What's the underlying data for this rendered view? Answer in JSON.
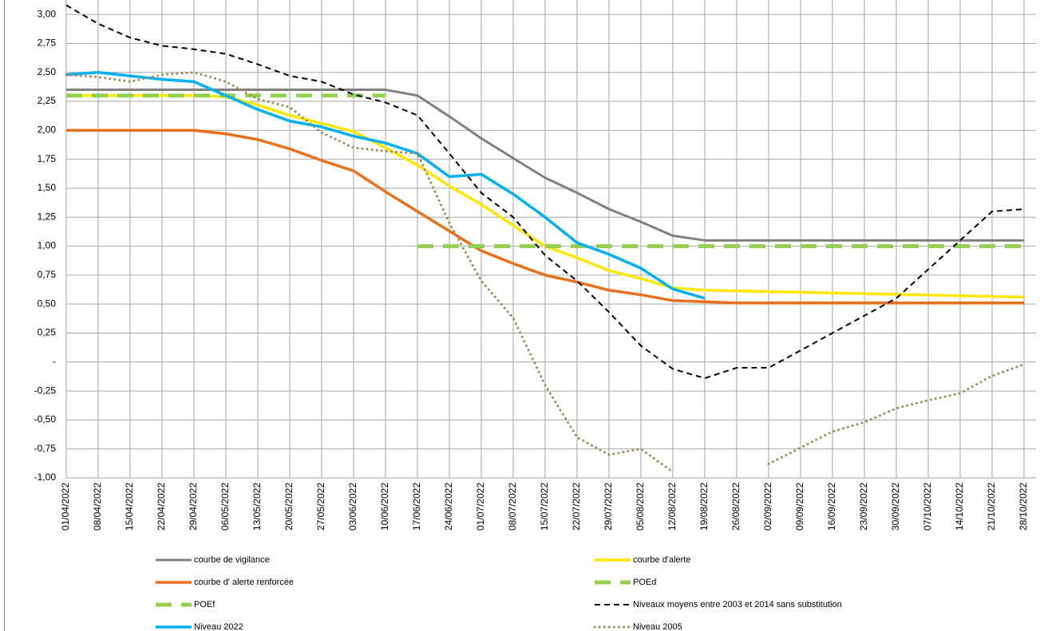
{
  "chart_data": {
    "type": "line",
    "categories": [
      "01/04/2022",
      "08/04/2022",
      "15/04/2022",
      "22/04/2022",
      "29/04/2022",
      "06/05/2022",
      "13/05/2022",
      "20/05/2022",
      "27/05/2022",
      "03/06/2022",
      "10/06/2022",
      "17/06/2022",
      "24/06/2022",
      "01/07/2022",
      "08/07/2022",
      "15/07/2022",
      "22/07/2022",
      "29/07/2022",
      "05/08/2022",
      "12/08/2022",
      "19/08/2022",
      "26/08/2022",
      "02/09/2022",
      "09/09/2022",
      "16/09/2022",
      "23/09/2022",
      "30/09/2022",
      "07/10/2022",
      "14/10/2022",
      "21/10/2022",
      "28/10/2022"
    ],
    "ylim": [
      -1,
      3.125
    ],
    "yticks": [
      {
        "value": 3,
        "label": "3,00"
      },
      {
        "value": 2.75,
        "label": "2,75"
      },
      {
        "value": 2.5,
        "label": "2,50"
      },
      {
        "value": 2.25,
        "label": "2,25"
      },
      {
        "value": 2,
        "label": "2,00"
      },
      {
        "value": 1.75,
        "label": "1,75"
      },
      {
        "value": 1.5,
        "label": "1,50"
      },
      {
        "value": 1.25,
        "label": "1,25"
      },
      {
        "value": 1,
        "label": "1,00"
      },
      {
        "value": 0.75,
        "label": "0,75"
      },
      {
        "value": 0.5,
        "label": "0,50"
      },
      {
        "value": 0.25,
        "label": "0,25"
      },
      {
        "value": 0,
        "label": "-"
      },
      {
        "value": -0.25,
        "label": "-0,25"
      },
      {
        "value": -0.5,
        "label": "-0,50"
      },
      {
        "value": -0.75,
        "label": "-0,75"
      },
      {
        "value": -1,
        "label": "-1,00"
      }
    ],
    "grid": true,
    "legend": "bottom",
    "series": [
      {
        "name": "courbe de vigilance",
        "color": "#808080",
        "line_style": "solid",
        "values": [
          2.35,
          2.35,
          2.35,
          2.35,
          2.35,
          2.35,
          2.35,
          2.35,
          2.35,
          2.35,
          2.35,
          2.3,
          2.12,
          1.93,
          1.76,
          1.59,
          1.46,
          1.32,
          1.21,
          1.09,
          1.05,
          1.05,
          1.05,
          1.05,
          1.05,
          1.05,
          1.05,
          1.05,
          1.05,
          1.05,
          1.05
        ]
      },
      {
        "name": "courbe d'alerte",
        "color": "#ffe600",
        "line_style": "solid",
        "values": [
          2.3,
          2.3,
          2.3,
          2.3,
          2.3,
          2.29,
          2.22,
          2.13,
          2.06,
          1.99,
          1.85,
          1.7,
          1.52,
          1.36,
          1.18,
          1.0,
          0.9,
          0.79,
          0.72,
          0.64,
          0.62,
          0.614,
          0.608,
          0.602,
          0.596,
          0.59,
          0.584,
          0.578,
          0.572,
          0.566,
          0.56
        ]
      },
      {
        "name": "courbe d' alerte renforcée",
        "color": "#e8701a",
        "line_style": "solid",
        "values": [
          2.0,
          2.0,
          2.0,
          2.0,
          2.0,
          1.97,
          1.92,
          1.84,
          1.74,
          1.65,
          1.47,
          1.3,
          1.13,
          0.96,
          0.85,
          0.75,
          0.69,
          0.62,
          0.58,
          0.53,
          0.52,
          0.51,
          0.51,
          0.51,
          0.51,
          0.51,
          0.51,
          0.51,
          0.51,
          0.51,
          0.51
        ]
      },
      {
        "name": "POEd",
        "color": "#92d050",
        "line_style": "long-dashed",
        "values": [
          2.3,
          2.3,
          2.3,
          2.3,
          2.3,
          2.3,
          2.3,
          2.3,
          2.3,
          2.3,
          2.3,
          null,
          null,
          null,
          null,
          null,
          null,
          null,
          null,
          null,
          null,
          null,
          null,
          null,
          null,
          null,
          null,
          null,
          null,
          null,
          null
        ]
      },
      {
        "name": "POEf",
        "color": "#92d050",
        "line_style": "long-dashed",
        "values": [
          null,
          null,
          null,
          null,
          null,
          null,
          null,
          null,
          null,
          null,
          null,
          1.0,
          1.0,
          1.0,
          1.0,
          1.0,
          1.0,
          1.0,
          1.0,
          1.0,
          1.0,
          1.0,
          1.0,
          1.0,
          1.0,
          1.0,
          1.0,
          1.0,
          1.0,
          1.0,
          1.0
        ]
      },
      {
        "name": "Niveaux moyens entre 2003 et 2014 sans substitution",
        "color": "#000000",
        "line_style": "dashed",
        "values": [
          3.08,
          2.92,
          2.8,
          2.73,
          2.7,
          2.66,
          2.57,
          2.47,
          2.42,
          2.31,
          2.24,
          2.13,
          1.8,
          1.46,
          1.25,
          0.92,
          0.7,
          0.43,
          0.14,
          -0.06,
          -0.14,
          -0.05,
          -0.05,
          0.1,
          0.25,
          0.4,
          0.55,
          0.8,
          1.05,
          1.3,
          1.32
        ]
      },
      {
        "name": "Niveau 2022",
        "color": "#00b0f0",
        "line_style": "solid",
        "values": [
          2.48,
          2.5,
          2.47,
          2.44,
          2.42,
          2.3,
          2.18,
          2.08,
          2.03,
          1.95,
          1.89,
          1.8,
          1.6,
          1.62,
          1.45,
          1.25,
          1.03,
          0.93,
          0.81,
          0.63,
          0.55,
          null,
          null,
          null,
          null,
          null,
          null,
          null,
          null,
          null,
          null
        ]
      },
      {
        "name": "Niveau 2005",
        "color": "#9c8c5a",
        "line_style": "dotted",
        "values": [
          2.48,
          2.46,
          2.42,
          2.48,
          2.5,
          2.42,
          2.27,
          2.2,
          1.98,
          1.85,
          1.82,
          1.8,
          1.2,
          0.7,
          0.38,
          -0.2,
          -0.65,
          -0.8,
          -0.75,
          -0.95,
          null,
          null,
          -0.88,
          -0.74,
          -0.6,
          -0.52,
          -0.4,
          -0.33,
          -0.27,
          -0.12,
          -0.02
        ]
      }
    ]
  }
}
